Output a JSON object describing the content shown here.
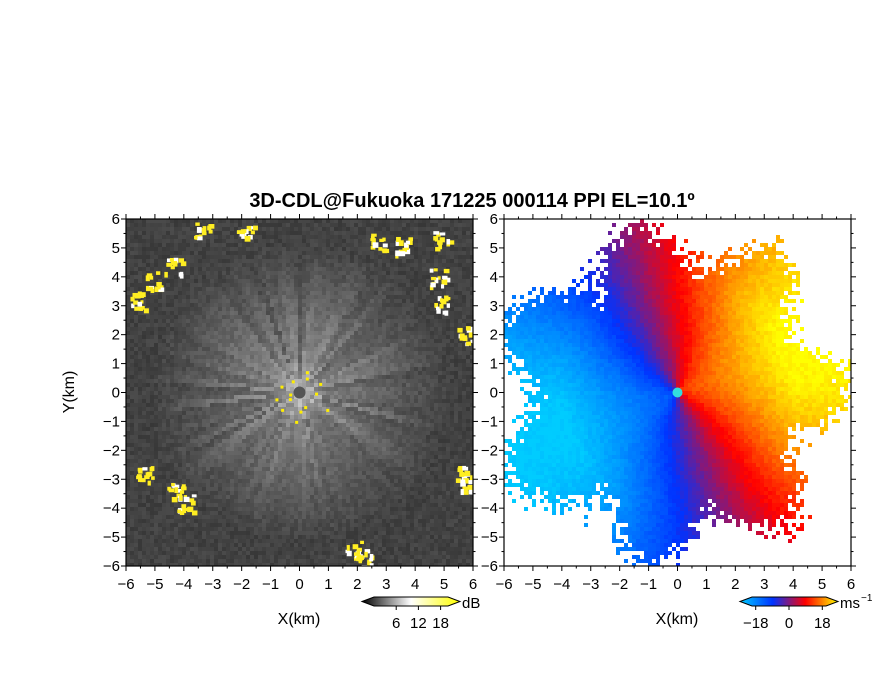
{
  "chart_data": [
    {
      "type": "heatmap",
      "title": "3D-CDL@Fukuoka 171225 000114 PPI EL=10.1º",
      "xlabel": "X(km)",
      "ylabel": "Y(km)",
      "xlim": [
        -6,
        6
      ],
      "ylim": [
        -6,
        6
      ],
      "x_ticks": [
        "−6",
        "−5",
        "−4",
        "−3",
        "−2",
        "−1",
        "0",
        "1",
        "2",
        "3",
        "4",
        "5",
        "6"
      ],
      "y_ticks": [
        "6",
        "5",
        "4",
        "3",
        "2",
        "1",
        "0",
        "−1",
        "−2",
        "−3",
        "−4",
        "−5",
        "−6"
      ],
      "colorbar": {
        "label": "dB",
        "ticks": [
          "6",
          "12",
          "18"
        ],
        "tick_values": [
          6,
          12,
          18
        ],
        "range": [
          0,
          20
        ],
        "colors": [
          "#000000",
          "#ffffff",
          "#ffff00"
        ]
      }
    },
    {
      "type": "heatmap",
      "xlabel": "X(km)",
      "xlim": [
        -6,
        6
      ],
      "ylim": [
        -6,
        6
      ],
      "x_ticks": [
        "−6",
        "−5",
        "−4",
        "−3",
        "−2",
        "−1",
        "0",
        "1",
        "2",
        "3",
        "4",
        "5",
        "6"
      ],
      "y_ticks": [
        "6",
        "5",
        "4",
        "3",
        "2",
        "1",
        "0",
        "−1",
        "−2",
        "−3",
        "−4",
        "−5",
        "−6"
      ],
      "colorbar": {
        "label": "ms",
        "label_exponent": "−1",
        "ticks": [
          "−18",
          "0",
          "18"
        ],
        "tick_values": [
          -18,
          0,
          18
        ],
        "range": [
          -20,
          20
        ],
        "colors": [
          "#00ccff",
          "#0033ff",
          "#ff0000",
          "#ffff00"
        ]
      }
    }
  ]
}
